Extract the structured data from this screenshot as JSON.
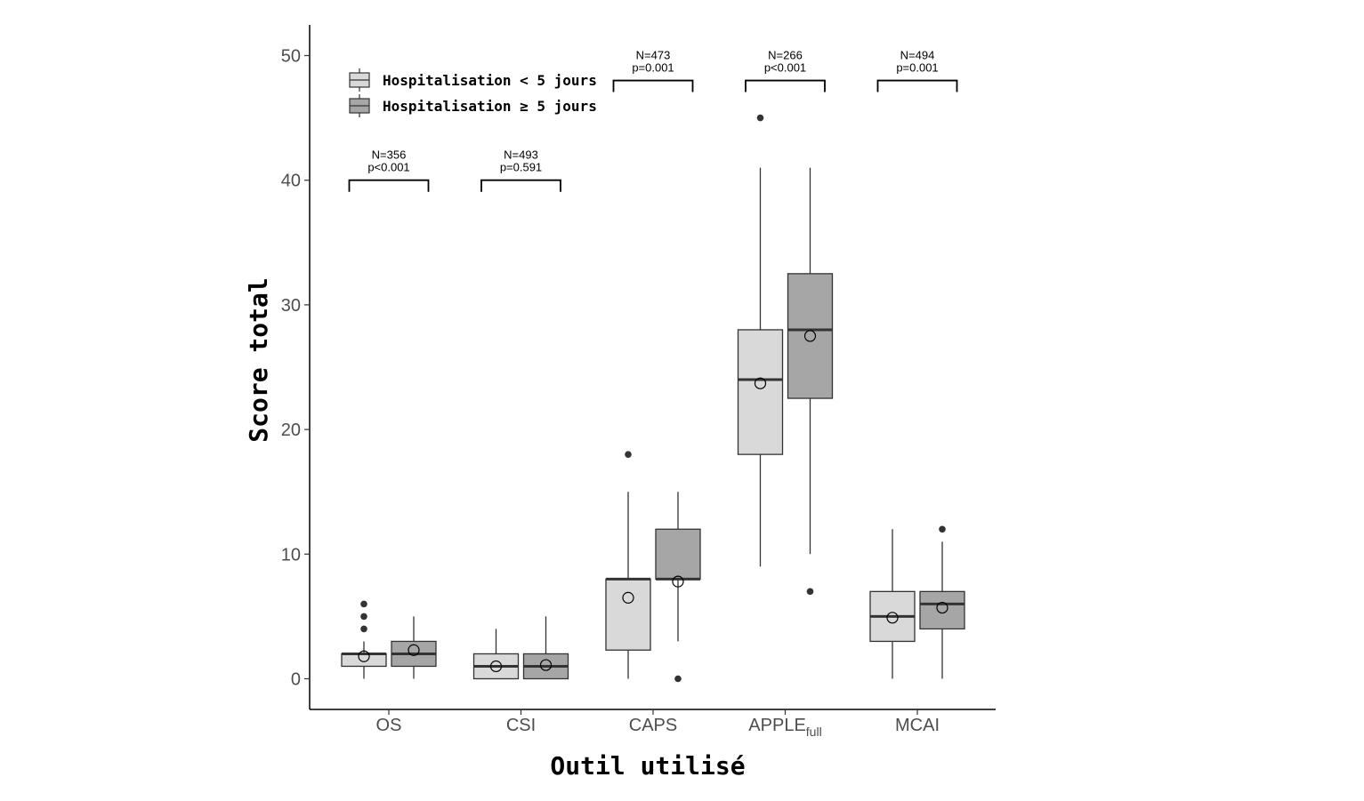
{
  "chart_data": {
    "type": "boxplot",
    "ylabel": "Score total",
    "xlabel": "Outil utilisé",
    "ylim": [
      -2.5,
      52.5
    ],
    "yticks": [
      0,
      10,
      20,
      30,
      40,
      50
    ],
    "grid": false,
    "legend_position": "top-left",
    "categories": [
      {
        "name": "OS",
        "sub": ""
      },
      {
        "name": "CSI",
        "sub": ""
      },
      {
        "name": "CAPS",
        "sub": ""
      },
      {
        "name": "APPLE",
        "sub": "full"
      },
      {
        "name": "MCAI",
        "sub": ""
      }
    ],
    "series": [
      {
        "name": "Hospitalisation < 5 jours",
        "color": "#d9d9d9"
      },
      {
        "name": "Hospitalisation ≥ 5 jours",
        "color": "#a6a6a6"
      }
    ],
    "boxes": [
      [
        {
          "q1": 1,
          "median": 2,
          "q3": 2,
          "whisker_low": 0,
          "whisker_high": 3,
          "mean": 1.8,
          "outliers": [
            4,
            5,
            6
          ]
        },
        {
          "q1": 1,
          "median": 2,
          "q3": 3,
          "whisker_low": 0,
          "whisker_high": 5,
          "mean": 2.3,
          "outliers": []
        }
      ],
      [
        {
          "q1": 0,
          "median": 1,
          "q3": 2,
          "whisker_low": 0,
          "whisker_high": 4,
          "mean": 1.0,
          "outliers": []
        },
        {
          "q1": 0,
          "median": 1,
          "q3": 2,
          "whisker_low": 0,
          "whisker_high": 5,
          "mean": 1.1,
          "outliers": []
        }
      ],
      [
        {
          "q1": 2.3,
          "median": 8,
          "q3": 8,
          "whisker_low": 0,
          "whisker_high": 15,
          "mean": 6.5,
          "outliers": [
            18
          ]
        },
        {
          "q1": 8,
          "median": 8,
          "q3": 12,
          "whisker_low": 3,
          "whisker_high": 15,
          "mean": 7.8,
          "outliers": [
            0
          ]
        }
      ],
      [
        {
          "q1": 18,
          "median": 24,
          "q3": 28,
          "whisker_low": 9,
          "whisker_high": 41,
          "mean": 23.7,
          "outliers": [
            45
          ]
        },
        {
          "q1": 22.5,
          "median": 28,
          "q3": 32.5,
          "whisker_low": 10,
          "whisker_high": 41,
          "mean": 27.5,
          "outliers": [
            7
          ]
        }
      ],
      [
        {
          "q1": 3,
          "median": 5,
          "q3": 7,
          "whisker_low": 0,
          "whisker_high": 12,
          "mean": 4.9,
          "outliers": []
        },
        {
          "q1": 4,
          "median": 6,
          "q3": 7,
          "whisker_low": 0,
          "whisker_high": 11,
          "mean": 5.7,
          "outliers": [
            12
          ]
        }
      ]
    ],
    "annotations": [
      {
        "n": "N=356",
        "p": "p<0.001",
        "bracket_y": 40
      },
      {
        "n": "N=493",
        "p": "p=0.591",
        "bracket_y": 40
      },
      {
        "n": "N=473",
        "p": "p=0.001",
        "bracket_y": 48
      },
      {
        "n": "N=266",
        "p": "p<0.001",
        "bracket_y": 48
      },
      {
        "n": "N=494",
        "p": "p=0.001",
        "bracket_y": 48
      }
    ]
  }
}
